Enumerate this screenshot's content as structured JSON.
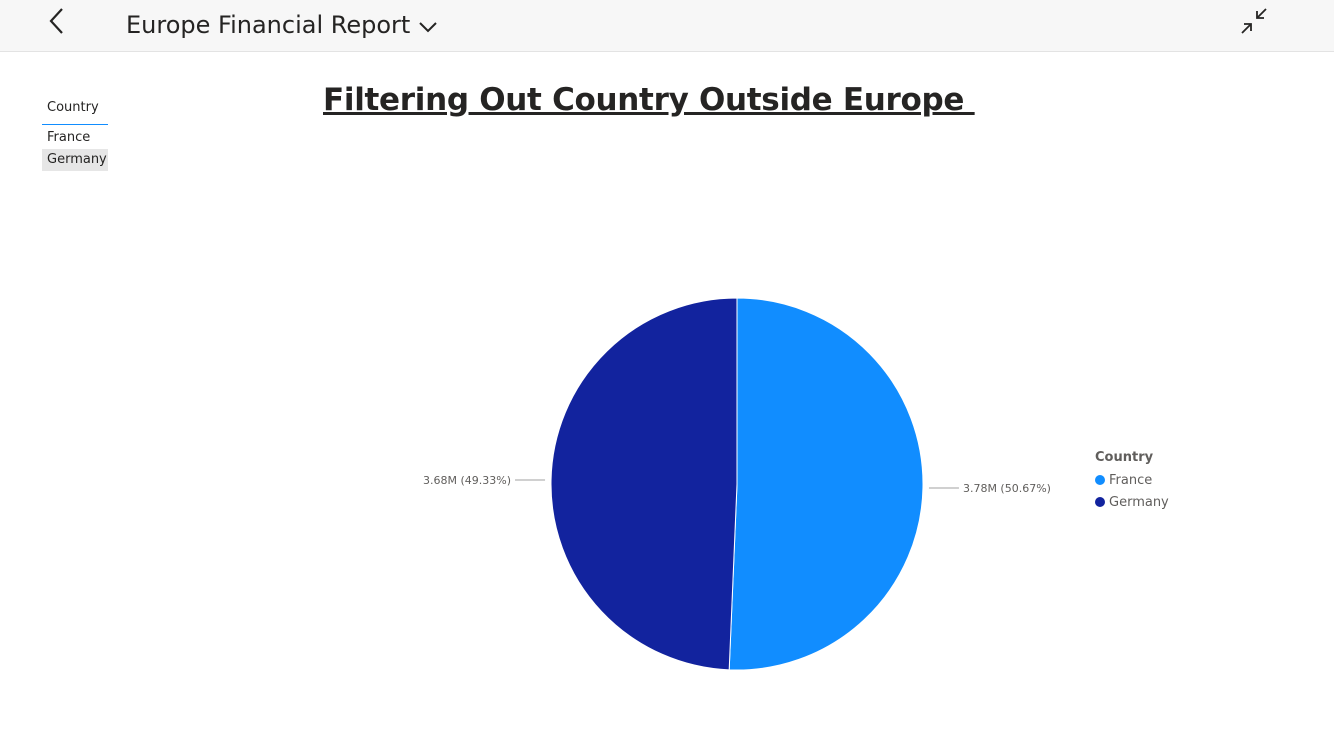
{
  "header": {
    "report_title": "Europe Financial Report"
  },
  "slicer": {
    "title": "Country",
    "items": [
      {
        "label": "France",
        "selected": false
      },
      {
        "label": "Germany",
        "selected": true
      }
    ]
  },
  "page": {
    "heading": "Filtering Out Country Outside Europe "
  },
  "icons": {
    "back": "chevron-left-icon",
    "dropdown": "chevron-down-icon",
    "collapse": "collapse-arrows-icon"
  },
  "colors": {
    "france": "#118dff",
    "germany": "#12239e"
  },
  "chart_data": {
    "type": "pie",
    "legend_title": "Country",
    "legend_position": "right",
    "slices": [
      {
        "name": "France",
        "value": 3.78,
        "unit": "M",
        "percent": 50.67,
        "label": "3.78M (50.67%)",
        "color": "#118dff"
      },
      {
        "name": "Germany",
        "value": 3.68,
        "unit": "M",
        "percent": 49.33,
        "label": "3.68M (49.33%)",
        "color": "#12239e"
      }
    ]
  }
}
